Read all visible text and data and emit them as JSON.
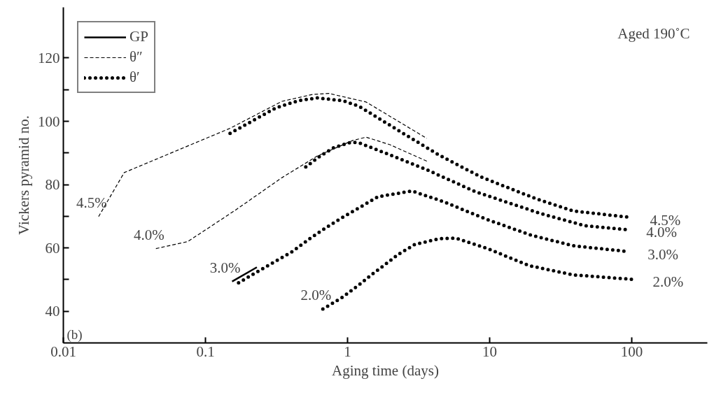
{
  "chart_data": {
    "type": "line",
    "xlabel": "Aging time (days)",
    "ylabel": "Vickers pyramid no.",
    "log": "x",
    "xlim": [
      0.01,
      340
    ],
    "ylim": [
      30,
      136
    ],
    "xticks": [
      0.01,
      0.1,
      1,
      10,
      100
    ],
    "yticks": [
      40,
      {
        "value": 50,
        "label": null
      },
      60,
      {
        "value": 70,
        "label": null
      },
      80,
      {
        "value": 90,
        "label": null
      },
      100,
      {
        "value": 110,
        "label": null
      },
      120
    ],
    "grid": false,
    "legend": "top left",
    "marker": "none",
    "series": [
      {
        "name": "GP",
        "color": "#000000",
        "line_style": "solid",
        "x": [
          0.154,
          0.23
        ],
        "values": [
          49.4,
          53.9
        ]
      },
      {
        "name": "θ″",
        "color": "#000000",
        "line_style": "dashed",
        "x": [
          0.0177,
          0.0268,
          0.149,
          0.345,
          0.568,
          0.74,
          1.35,
          3.61
        ],
        "values": [
          69.9,
          83.8,
          97.8,
          106.3,
          108.5,
          108.8,
          106.1,
          94.6
        ]
      },
      {
        "color": "#000000",
        "line_style": "dashed",
        "x": [
          0.0448,
          0.075,
          0.162,
          0.345,
          0.61,
          1.08,
          1.35,
          1.99,
          3.61
        ],
        "values": [
          59.8,
          62.0,
          71.9,
          82.2,
          89.0,
          93.9,
          95.0,
          92.6,
          87.4
        ]
      },
      {
        "name": "θ′",
        "color": "#000000",
        "line_style": "dotted",
        "x": [
          0.149,
          0.314,
          0.45,
          0.61,
          0.93,
          1.21,
          2.42,
          4.38,
          8.6,
          21.3,
          38.6,
          95.5
        ],
        "values": [
          96.2,
          104.3,
          106.5,
          107.4,
          106.5,
          104.7,
          96.4,
          89.4,
          82.5,
          75.5,
          71.7,
          69.7
        ]
      },
      {
        "color": "#000000",
        "line_style": "dotted",
        "x": [
          0.508,
          0.64,
          0.8,
          1.04,
          1.19,
          1.99,
          3.61,
          7.9,
          23.1,
          47,
          90
        ],
        "values": [
          85.6,
          89.0,
          91.7,
          93.3,
          93.3,
          89.4,
          84.7,
          77.8,
          70.8,
          67.0,
          65.8
        ]
      },
      {
        "color": "#000000",
        "line_style": "dotted",
        "x": [
          0.171,
          0.297,
          0.403,
          0.56,
          0.71,
          0.9,
          1.64,
          2.84,
          4.75,
          9.3,
          19.7,
          38.6,
          92
        ],
        "values": [
          49.0,
          55.3,
          58.7,
          63.4,
          66.5,
          69.4,
          76.2,
          78.0,
          74.6,
          69.2,
          64.0,
          60.7,
          58.9
        ]
      },
      {
        "color": "#000000",
        "line_style": "dotted",
        "x": [
          0.67,
          0.91,
          1.2,
          1.51,
          1.84,
          2.28,
          2.97,
          4.38,
          5.77,
          9.66,
          19.0,
          38.6,
          100
        ],
        "values": [
          40.7,
          44.3,
          48.3,
          51.9,
          54.8,
          58.0,
          61.1,
          62.9,
          63.1,
          59.8,
          54.4,
          51.5,
          50.1
        ]
      }
    ],
    "annotations": [
      "Aged 190˚C",
      "(b)",
      {
        "text": "4.5%",
        "x": 0.0177,
        "y": 69.9
      },
      {
        "text": "4.0%",
        "x": 0.0448,
        "y": 59.8
      },
      {
        "text": "3.0%",
        "x": 0.154,
        "y": 49.4
      },
      {
        "text": "2.0%",
        "x": 0.67,
        "y": 40.7
      },
      {
        "text": "4.5%",
        "x": 95.5,
        "y": 69.7
      },
      {
        "text": "4.0%",
        "x": 90,
        "y": 65.8
      },
      {
        "text": "3.0%",
        "x": 92,
        "y": 58.9
      },
      {
        "text": "2.0%",
        "x": 100,
        "y": 50.1
      }
    ]
  }
}
